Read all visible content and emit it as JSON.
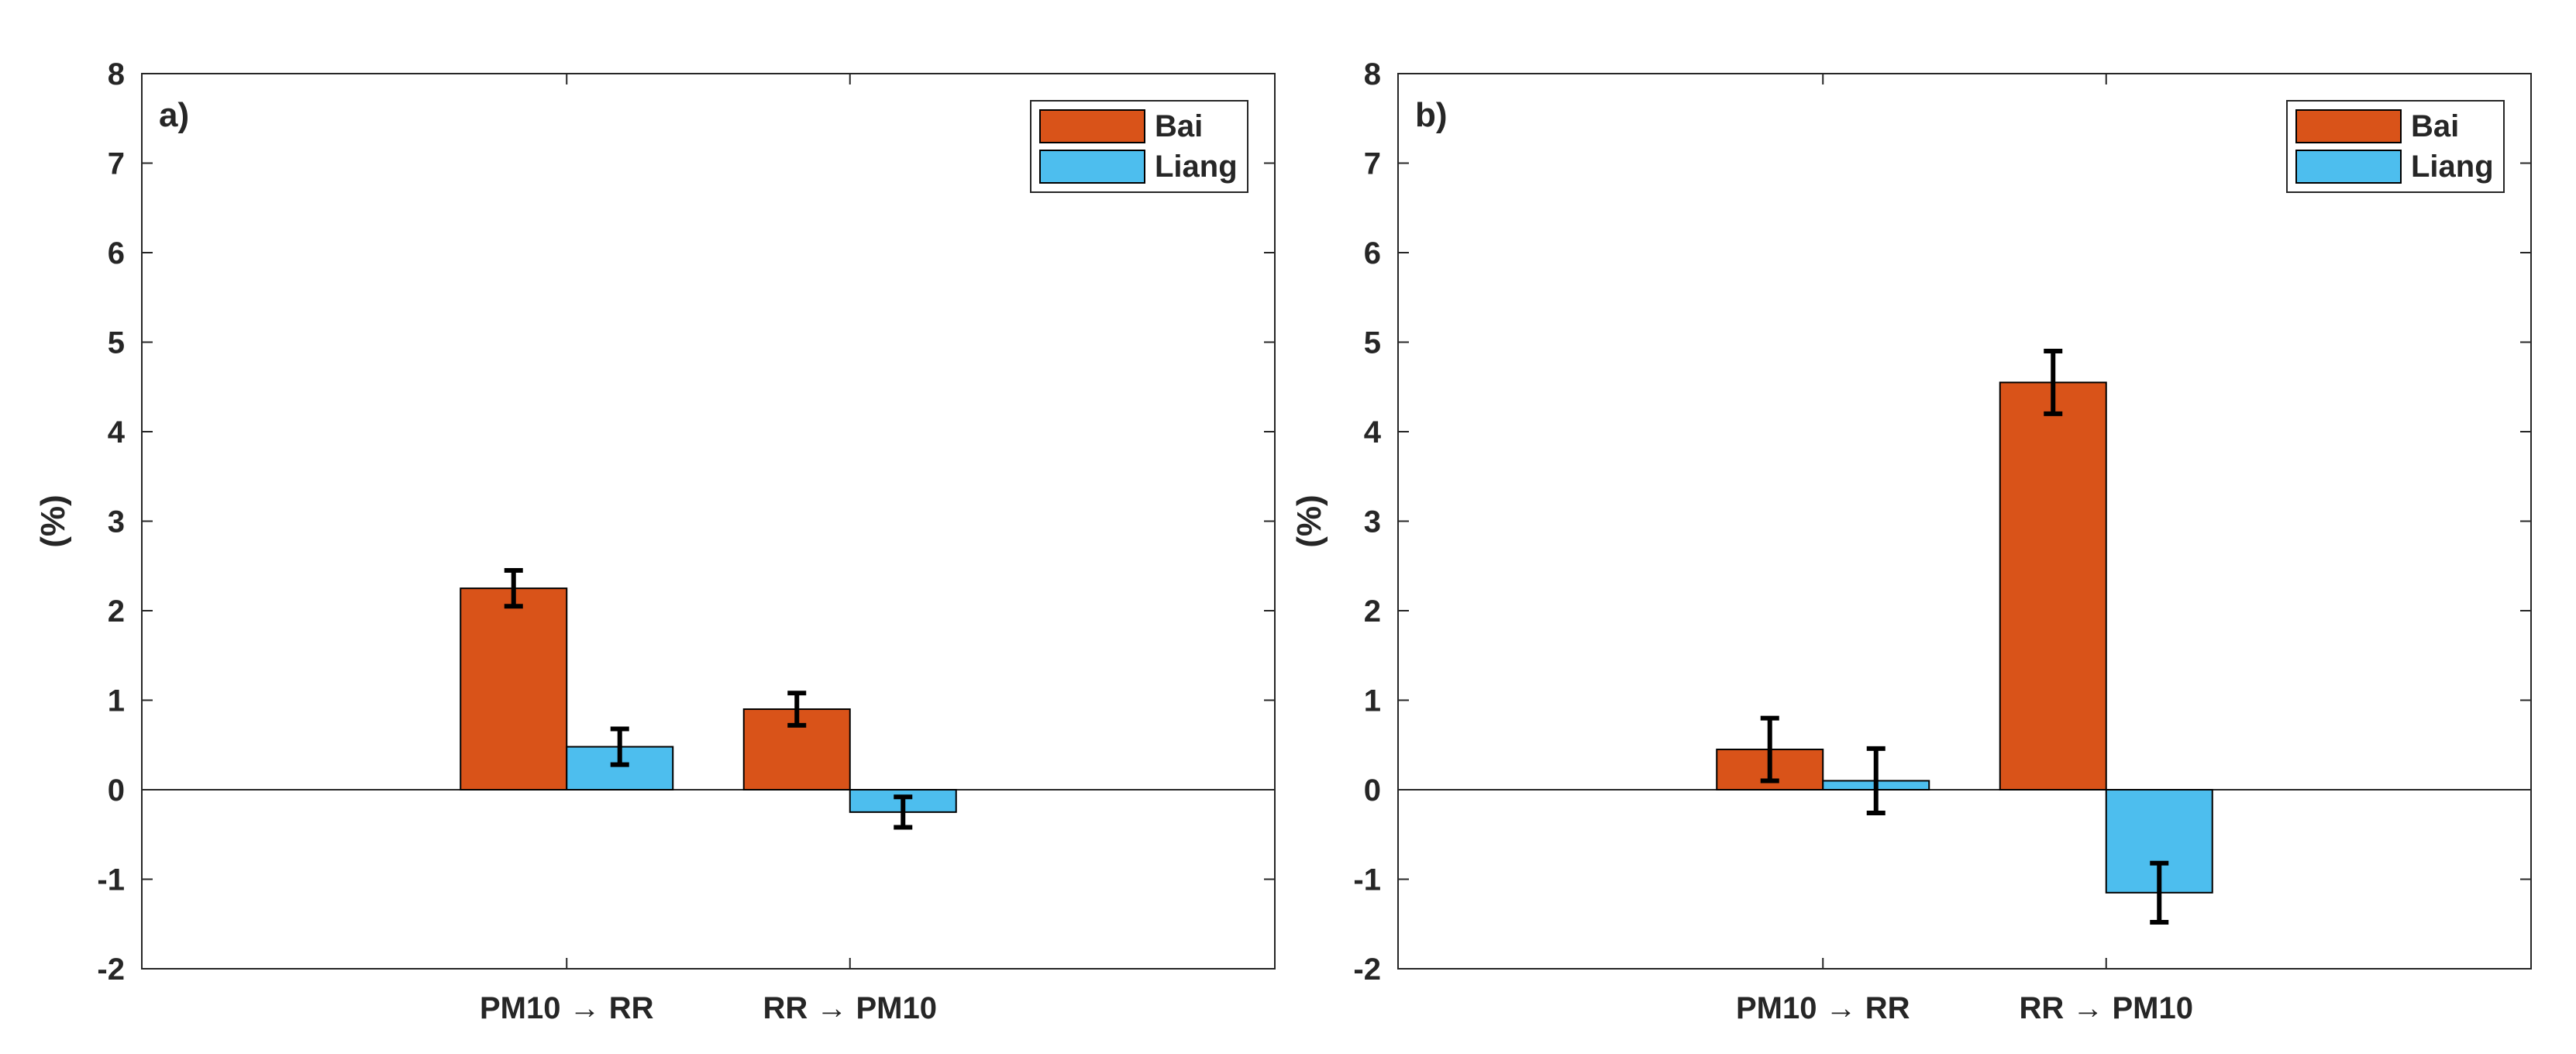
{
  "chart_data": [
    {
      "type": "bar",
      "panel_label": "a)",
      "ylabel": "(%)",
      "ylim": [
        -2,
        8
      ],
      "yticks": [
        "-2",
        "-1",
        "0",
        "1",
        "2",
        "3",
        "4",
        "5",
        "6",
        "7",
        "8"
      ],
      "categories": [
        "PM10 → RR",
        "RR → PM10"
      ],
      "series": [
        {
          "name": "Bai",
          "color": "#D95319",
          "values": [
            2.25,
            0.9
          ],
          "error": [
            0.2,
            0.18
          ]
        },
        {
          "name": "Liang",
          "color": "#4DBEEE",
          "values": [
            0.48,
            -0.25
          ],
          "error": [
            0.2,
            0.17
          ]
        }
      ],
      "legend_position": "top-right"
    },
    {
      "type": "bar",
      "panel_label": "b)",
      "ylabel": "(%)",
      "ylim": [
        -2,
        8
      ],
      "yticks": [
        "-2",
        "-1",
        "0",
        "1",
        "2",
        "3",
        "4",
        "5",
        "6",
        "7",
        "8"
      ],
      "categories": [
        "PM10 → RR",
        "RR → PM10"
      ],
      "series": [
        {
          "name": "Bai",
          "color": "#D95319",
          "values": [
            0.45,
            4.55
          ],
          "error": [
            0.35,
            0.35
          ]
        },
        {
          "name": "Liang",
          "color": "#4DBEEE",
          "values": [
            0.1,
            -1.15
          ],
          "error": [
            0.36,
            0.33
          ]
        }
      ],
      "legend_position": "top-right"
    }
  ]
}
